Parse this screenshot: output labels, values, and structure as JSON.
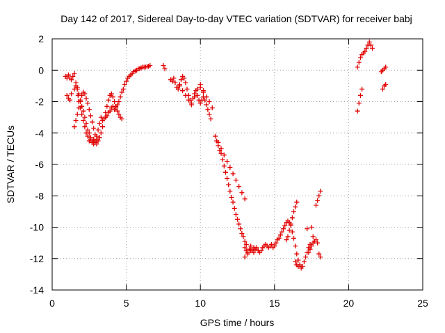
{
  "chart_data": {
    "type": "scatter",
    "title": "Day 142 of 2017, Sidereal Day-to-day VTEC variation (SDTVAR) for receiver babj",
    "xlabel": "GPS time / hours",
    "ylabel": "SDTVAR / TECUs",
    "xlim": [
      0,
      25
    ],
    "ylim": [
      -14,
      2
    ],
    "xticks": [
      0,
      5,
      10,
      15,
      20,
      25
    ],
    "yticks": [
      2,
      0,
      -2,
      -4,
      -6,
      -8,
      -10,
      -12,
      -14
    ],
    "xtick_labels": [
      "0",
      "5",
      "10",
      "15",
      "20",
      "25"
    ],
    "ytick_labels": [
      "2",
      "0",
      "-2",
      "-4",
      "-6",
      "-8",
      "-10",
      "-12",
      "-14"
    ],
    "grid": true,
    "marker": "+",
    "color": "#e00000",
    "series": [
      {
        "name": "SDTVAR",
        "x": [
          0.9,
          1.0,
          1.1,
          1.2,
          1.3,
          1.4,
          1.5,
          1.6,
          1.7,
          1.75,
          1.8,
          1.9,
          2.0,
          2.1,
          2.2,
          2.3,
          2.4,
          2.5,
          2.6,
          2.7,
          2.8,
          2.9,
          3.0,
          3.1,
          3.2,
          3.3,
          3.4,
          3.5,
          3.6,
          3.7,
          3.8,
          3.9,
          4.0,
          4.1,
          4.2,
          4.3,
          4.4,
          4.5,
          4.6,
          4.7,
          4.8,
          4.9,
          5.0,
          5.1,
          5.2,
          5.3,
          5.4,
          5.5,
          5.6,
          5.7,
          5.8,
          5.9,
          6.0,
          6.1,
          6.2,
          6.3,
          6.4,
          6.5,
          6.6,
          1.0,
          1.1,
          1.2,
          1.3,
          1.5,
          1.6,
          1.7,
          1.8,
          1.9,
          2.0,
          2.1,
          2.2,
          2.3,
          2.4,
          2.5,
          2.6,
          2.7,
          2.8,
          2.9,
          3.0,
          1.5,
          1.6,
          1.7,
          1.8,
          1.9,
          2.0,
          2.1,
          2.2,
          2.3,
          2.4,
          2.5,
          2.6,
          2.7,
          2.8,
          2.9,
          3.0,
          3.1,
          3.2,
          3.3,
          3.4,
          3.5,
          3.6,
          3.7,
          3.8,
          3.9,
          4.0,
          4.1,
          4.2,
          4.3,
          4.4,
          4.5,
          4.6,
          4.7,
          7.5,
          7.6,
          8.0,
          8.1,
          8.2,
          8.3,
          8.4,
          8.5,
          8.6,
          8.7,
          8.8,
          8.9,
          9.0,
          9.1,
          9.2,
          9.3,
          9.4,
          9.5,
          9.6,
          9.7,
          9.8,
          9.9,
          10.0,
          10.1,
          10.2,
          10.3,
          10.4,
          10.5,
          10.6,
          10.7,
          8.6,
          8.8,
          9.0,
          9.2,
          9.4,
          9.6,
          9.8,
          10.0,
          10.2,
          10.0,
          10.2,
          10.4,
          10.6,
          10.8,
          11.0,
          11.1,
          11.2,
          11.3,
          11.4,
          11.5,
          11.6,
          11.7,
          11.8,
          11.9,
          12.0,
          12.1,
          12.2,
          12.3,
          12.4,
          12.5,
          12.6,
          12.7,
          12.8,
          12.9,
          13.0,
          13.1,
          11.2,
          11.4,
          11.6,
          11.8,
          12.0,
          12.2,
          12.4,
          12.6,
          12.8,
          13.0,
          13.0,
          13.1,
          13.2,
          13.3,
          13.4,
          13.5,
          13.6,
          13.7,
          13.8,
          13.9,
          14.0,
          14.1,
          14.2,
          14.3,
          14.4,
          14.5,
          14.6,
          14.7,
          14.8,
          14.9,
          15.0,
          15.1,
          15.2,
          15.3,
          15.4,
          15.5,
          15.6,
          15.7,
          15.8,
          15.9,
          16.0,
          16.1,
          16.2,
          16.3,
          16.4,
          16.5,
          16.6,
          16.7,
          16.8,
          16.9,
          17.0,
          17.1,
          17.2,
          17.3,
          17.4,
          13.0,
          13.2,
          13.4,
          13.6,
          15.8,
          15.9,
          16.0,
          16.1,
          16.2,
          16.3,
          16.4,
          16.5,
          16.4,
          16.5,
          16.6,
          17.3,
          17.4,
          17.5,
          17.6,
          17.7,
          17.8,
          17.9,
          18.0,
          18.1,
          17.8,
          17.9,
          18.0,
          18.1,
          17.2,
          17.5,
          17.6,
          20.6,
          20.7,
          20.8,
          20.9,
          21.0,
          21.1,
          21.2,
          21.3,
          21.4,
          21.5,
          21.6,
          20.6,
          20.7,
          20.8,
          20.9,
          22.2,
          22.3,
          22.4,
          22.5,
          22.3,
          22.4,
          22.5
        ],
        "y": [
          -0.4,
          -0.5,
          -0.3,
          -0.5,
          -0.6,
          -0.4,
          -0.2,
          -0.8,
          -1.2,
          -1.6,
          -2.0,
          -2.4,
          -2.8,
          -3.2,
          -3.6,
          -4.0,
          -4.2,
          -4.5,
          -4.4,
          -4.6,
          -4.7,
          -4.5,
          -4.2,
          -3.8,
          -3.4,
          -3.0,
          -3.2,
          -3.1,
          -3.0,
          -2.9,
          -2.7,
          -2.6,
          -2.4,
          -2.3,
          -2.5,
          -2.4,
          -2.2,
          -2.0,
          -1.7,
          -1.4,
          -1.2,
          -0.9,
          -0.7,
          -0.5,
          -0.4,
          -0.3,
          -0.2,
          -0.1,
          -0.05,
          -0.0,
          0.1,
          0.1,
          0.15,
          0.2,
          0.2,
          0.2,
          0.25,
          0.25,
          0.3,
          -1.6,
          -1.8,
          -1.9,
          -1.5,
          -1.2,
          -1.0,
          -1.1,
          -1.5,
          -1.9,
          -2.3,
          -2.6,
          -3.0,
          -3.4,
          -3.8,
          -4.0,
          -4.3,
          -4.5,
          -4.4,
          -4.6,
          -4.7,
          -3.6,
          -3.2,
          -2.8,
          -2.4,
          -2.0,
          -1.6,
          -1.4,
          -1.5,
          -1.8,
          -2.1,
          -2.5,
          -2.9,
          -3.3,
          -3.7,
          -4.1,
          -4.4,
          -4.5,
          -4.3,
          -4.0,
          -3.6,
          -3.1,
          -2.7,
          -2.3,
          -1.9,
          -1.6,
          -1.5,
          -1.7,
          -2.0,
          -2.3,
          -2.6,
          -2.8,
          -3.0,
          -3.1,
          0.3,
          0.1,
          -0.6,
          -0.7,
          -0.5,
          -0.8,
          -1.1,
          -1.2,
          -0.9,
          -0.6,
          -0.4,
          -0.5,
          -0.8,
          -1.2,
          -1.6,
          -1.9,
          -2.1,
          -1.8,
          -1.5,
          -1.3,
          -1.6,
          -1.9,
          -2.1,
          -1.9,
          -1.7,
          -1.9,
          -2.2,
          -2.5,
          -2.8,
          -3.1,
          -1.0,
          -1.3,
          -1.6,
          -1.9,
          -2.2,
          -1.7,
          -1.2,
          -0.9,
          -1.4,
          -1.1,
          -1.3,
          -1.7,
          -2.0,
          -2.4,
          -4.2,
          -4.5,
          -4.8,
          -5.1,
          -5.3,
          -5.7,
          -6.1,
          -6.5,
          -6.9,
          -7.3,
          -7.7,
          -8.1,
          -8.4,
          -8.8,
          -9.2,
          -9.5,
          -9.8,
          -10.1,
          -10.4,
          -10.6,
          -10.9,
          -11.1,
          -4.6,
          -5.0,
          -5.4,
          -5.8,
          -6.2,
          -6.6,
          -7.0,
          -7.4,
          -7.8,
          -8.2,
          -11.3,
          -11.5,
          -11.6,
          -11.4,
          -11.2,
          -11.5,
          -11.6,
          -11.4,
          -11.3,
          -11.5,
          -11.6,
          -11.5,
          -11.3,
          -11.2,
          -11.1,
          -11.2,
          -11.3,
          -11.2,
          -11.1,
          -11.3,
          -11.2,
          -11.0,
          -10.8,
          -10.7,
          -10.5,
          -10.3,
          -10.1,
          -9.9,
          -9.7,
          -9.6,
          -9.7,
          -9.9,
          -10.3,
          -10.7,
          -11.2,
          -11.7,
          -12.1,
          -12.4,
          -12.6,
          -12.5,
          -12.2,
          -11.9,
          -11.6,
          -11.3,
          -11.1,
          -11.9,
          -11.7,
          -11.5,
          -11.3,
          -10.8,
          -10.6,
          -10.2,
          -9.8,
          -9.4,
          -9.0,
          -8.7,
          -8.4,
          -12.2,
          -12.4,
          -12.5,
          -11.6,
          -11.4,
          -11.2,
          -11.0,
          -10.9,
          -10.8,
          -11.0,
          -11.7,
          -11.9,
          -8.6,
          -8.3,
          -8.0,
          -7.7,
          -10.1,
          -10.0,
          -10.6,
          0.2,
          0.5,
          0.8,
          1.0,
          1.1,
          1.2,
          1.4,
          1.6,
          1.8,
          1.6,
          1.4,
          -2.6,
          -2.1,
          -1.6,
          -1.2,
          -0.1,
          0.0,
          0.1,
          0.2,
          -1.2,
          -1.0,
          -0.9
        ]
      }
    ]
  }
}
